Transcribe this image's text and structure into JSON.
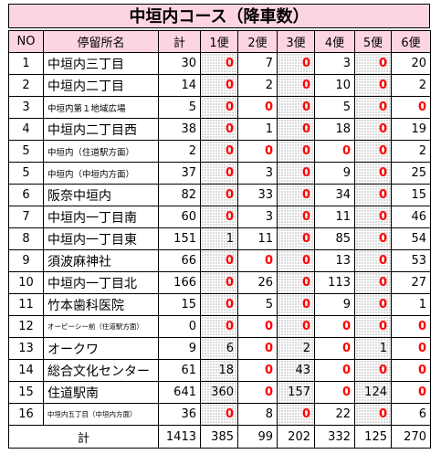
{
  "title": "中垣内コース（降車数）",
  "headers": [
    "NO",
    "停留所名",
    "計",
    "1便",
    "2便",
    "3便",
    "4便",
    "5便",
    "6便"
  ],
  "rows": [
    {
      "no": "1",
      "name": "中垣内三丁目",
      "total": "30",
      "v": [
        "0",
        "7",
        "0",
        "3",
        "0",
        "20"
      ]
    },
    {
      "no": "2",
      "name": "中垣内二丁目",
      "total": "14",
      "v": [
        "0",
        "2",
        "0",
        "10",
        "0",
        "2"
      ]
    },
    {
      "no": "3",
      "name": "中垣内第１地域広場",
      "total": "5",
      "v": [
        "0",
        "0",
        "0",
        "5",
        "0",
        "0"
      ]
    },
    {
      "no": "4",
      "name": "中垣内二丁目西",
      "total": "38",
      "v": [
        "0",
        "1",
        "0",
        "18",
        "0",
        "19"
      ]
    },
    {
      "no": "5",
      "name": "中垣内（住道駅方面）",
      "total": "2",
      "v": [
        "0",
        "0",
        "0",
        "0",
        "0",
        "2"
      ]
    },
    {
      "no": "5",
      "name": "中垣内（中垣内方面）",
      "total": "37",
      "v": [
        "0",
        "3",
        "0",
        "9",
        "0",
        "25"
      ]
    },
    {
      "no": "6",
      "name": "阪奈中垣内",
      "total": "82",
      "v": [
        "0",
        "33",
        "0",
        "34",
        "0",
        "15"
      ]
    },
    {
      "no": "7",
      "name": "中垣内一丁目南",
      "total": "60",
      "v": [
        "0",
        "3",
        "0",
        "11",
        "0",
        "46"
      ]
    },
    {
      "no": "8",
      "name": "中垣内一丁目東",
      "total": "151",
      "v": [
        "1",
        "11",
        "0",
        "85",
        "0",
        "54"
      ]
    },
    {
      "no": "9",
      "name": "須波麻神社",
      "total": "66",
      "v": [
        "0",
        "0",
        "0",
        "13",
        "0",
        "53"
      ]
    },
    {
      "no": "10",
      "name": "中垣内一丁目北",
      "total": "166",
      "v": [
        "0",
        "26",
        "0",
        "113",
        "0",
        "27"
      ]
    },
    {
      "no": "11",
      "name": "竹本歯科医院",
      "total": "15",
      "v": [
        "0",
        "5",
        "0",
        "9",
        "0",
        "1"
      ]
    },
    {
      "no": "12",
      "name": "オーピーシー前（住道駅方面）",
      "total": "0",
      "v": [
        "0",
        "0",
        "0",
        "0",
        "0",
        "0"
      ]
    },
    {
      "no": "13",
      "name": "オークワ",
      "total": "9",
      "v": [
        "6",
        "0",
        "2",
        "0",
        "1",
        "0"
      ]
    },
    {
      "no": "14",
      "name": "総合文化センター",
      "total": "61",
      "v": [
        "18",
        "0",
        "43",
        "0",
        "0",
        "0"
      ]
    },
    {
      "no": "15",
      "name": "住道駅南",
      "total": "641",
      "v": [
        "360",
        "0",
        "157",
        "0",
        "124",
        "0"
      ]
    },
    {
      "no": "16",
      "name": "中垣内五丁目（中垣内方面）",
      "total": "36",
      "v": [
        "0",
        "8",
        "0",
        "22",
        "0",
        "6"
      ]
    }
  ],
  "totals": {
    "label": "計",
    "total": "1413",
    "v": [
      "385",
      "99",
      "202",
      "332",
      "125",
      "270"
    ]
  }
}
